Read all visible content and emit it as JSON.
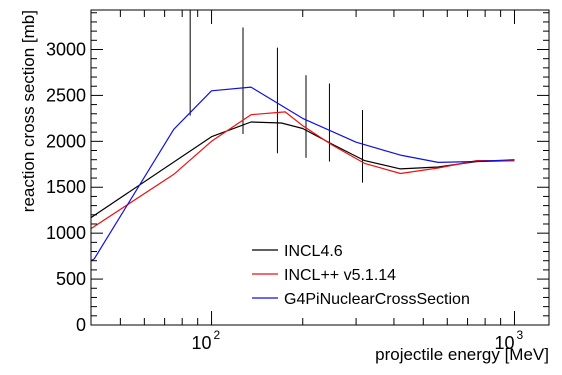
{
  "chart_data": {
    "type": "line",
    "xscale": "log",
    "xlim": [
      40,
      1300
    ],
    "ylim": [
      0,
      3430
    ],
    "xlabel": "projectile energy [MeV]",
    "ylabel": "reaction cross section [mb]",
    "grid": false,
    "legend_position": "bottom-right",
    "y_ticks": [
      0,
      500,
      1000,
      1500,
      2000,
      2500,
      3000
    ],
    "x_ticks": [
      {
        "value": 100,
        "label": "10",
        "exp": "2"
      },
      {
        "value": 1000,
        "label": "10",
        "exp": "3"
      }
    ],
    "series": [
      {
        "name": "INCL4.6",
        "color": "#000000",
        "x": [
          40,
          100,
          135,
          170,
          200,
          250,
          320,
          420,
          560,
          750,
          1000
        ],
        "y": [
          1170,
          2050,
          2210,
          2200,
          2140,
          1970,
          1790,
          1700,
          1720,
          1780,
          1790
        ]
      },
      {
        "name": "INCL++ v5.1.14",
        "color": "#ee1111",
        "x": [
          40,
          75,
          100,
          135,
          175,
          200,
          250,
          320,
          420,
          560,
          750,
          1000
        ],
        "y": [
          1050,
          1640,
          2000,
          2290,
          2320,
          2170,
          1960,
          1760,
          1650,
          1710,
          1790,
          1790
        ]
      },
      {
        "name": "G4PiNuclearCrossSection",
        "color": "#1111dd",
        "x": [
          40,
          41,
          75,
          100,
          135,
          200,
          300,
          420,
          560,
          750,
          1000
        ],
        "y": [
          700,
          720,
          2130,
          2550,
          2590,
          2250,
          1990,
          1850,
          1770,
          1780,
          1800
        ]
      }
    ],
    "error_bars": {
      "x": [
        85,
        127,
        165,
        205,
        245,
        315
      ],
      "low": [
        2280,
        2080,
        1870,
        1820,
        1780,
        1550
      ],
      "high": [
        3430,
        3240,
        3020,
        2720,
        2630,
        2340
      ]
    }
  }
}
